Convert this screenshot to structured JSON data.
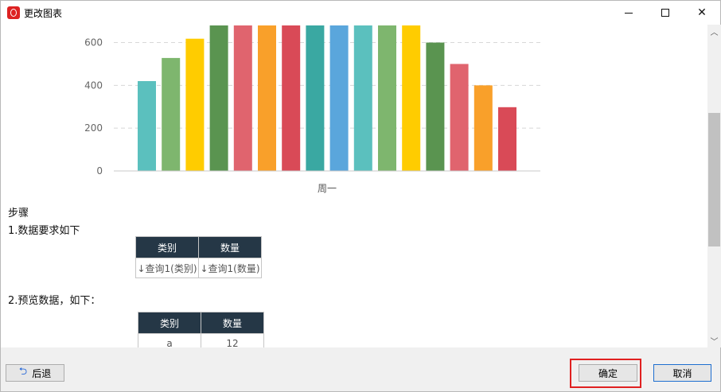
{
  "window": {
    "title": "更改图表"
  },
  "chart_data": {
    "type": "bar",
    "categories": [
      "周一"
    ],
    "series_values": [
      420,
      528,
      618,
      680,
      680,
      680,
      680,
      680,
      680,
      680,
      680,
      680,
      600,
      500,
      400,
      298
    ],
    "colors": [
      "#5bc0be",
      "#7eb66e",
      "#ffcc00",
      "#5a9450",
      "#e0646e",
      "#f9a02a",
      "#d94a57",
      "#3aa8a2",
      "#5aa6dc",
      "#5bc0be",
      "#7eb66e",
      "#ffcc00",
      "#5a9450",
      "#e0646e",
      "#f9a02a",
      "#d94a57"
    ],
    "yticks": [
      "0",
      "200",
      "400",
      "600"
    ],
    "ylim": [
      0,
      680
    ],
    "grid": true
  },
  "content": {
    "steps_title": "步骤",
    "step1": "1.数据要求如下",
    "step2": "2.预览数据，如下：",
    "requirement_table": {
      "headers": [
        "类别",
        "数量"
      ],
      "row": [
        "↓查询1(类别)",
        "↓查询1(数量)"
      ]
    },
    "preview_table": {
      "headers": [
        "类别",
        "数量"
      ],
      "row": [
        "a",
        "12"
      ]
    }
  },
  "footer": {
    "back_label": "后退",
    "ok_label": "确定",
    "cancel_label": "取消"
  }
}
